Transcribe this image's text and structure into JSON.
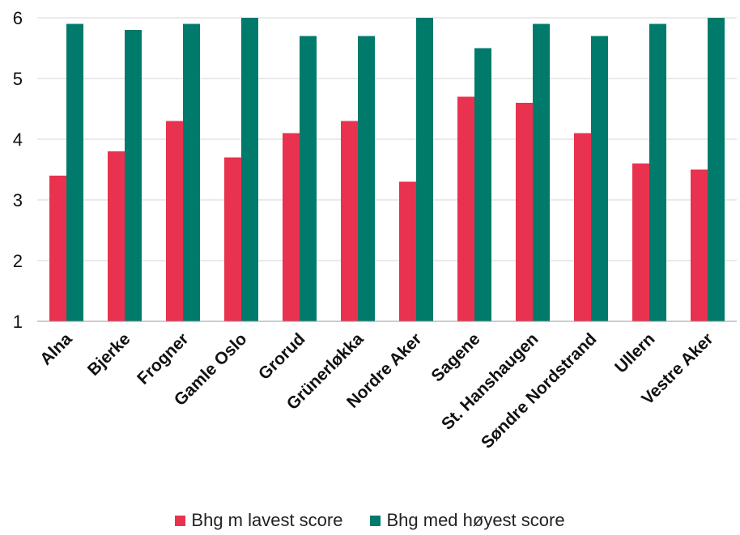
{
  "chart_data": {
    "type": "bar",
    "categories": [
      "Alna",
      "Bjerke",
      "Frogner",
      "Gamle Oslo",
      "Grorud",
      "Grünerløkka",
      "Nordre Aker",
      "Sagene",
      "St. Hanshaugen",
      "Søndre Nordstrand",
      "Ullern",
      "Vestre Aker"
    ],
    "series": [
      {
        "name": "Bhg m lavest score",
        "color": "#e8324f",
        "values": [
          3.4,
          3.8,
          4.3,
          3.7,
          4.1,
          4.3,
          3.3,
          4.7,
          4.6,
          4.1,
          3.6,
          3.5
        ]
      },
      {
        "name": "Bhg med høyest score",
        "color": "#007a6a",
        "values": [
          5.9,
          5.8,
          5.9,
          6.0,
          5.7,
          5.7,
          6.0,
          5.5,
          5.9,
          5.7,
          5.9,
          6.0
        ]
      }
    ],
    "ylim": [
      1,
      6
    ],
    "yticks": [
      1,
      2,
      3,
      4,
      5,
      6
    ],
    "grid": true,
    "legend_position": "bottom"
  }
}
